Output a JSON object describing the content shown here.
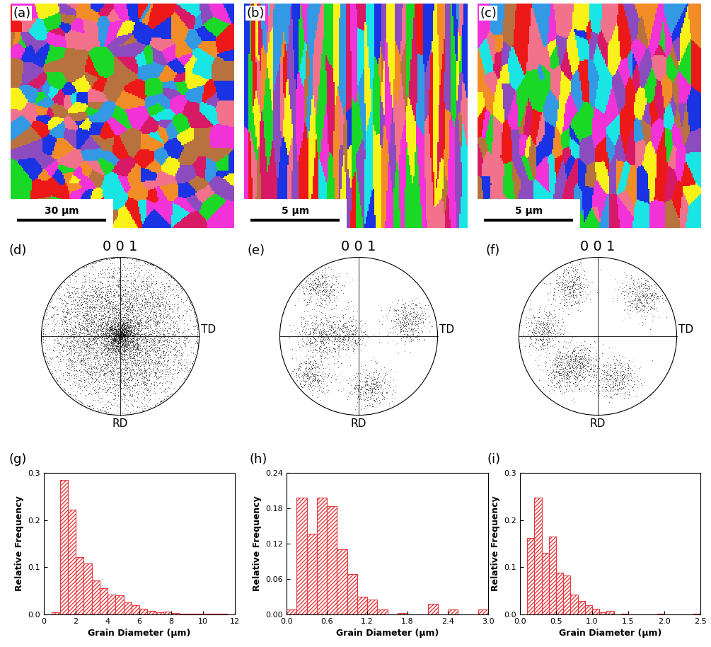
{
  "maps": [
    {
      "label": "(a)",
      "scale_bar": "30 μm"
    },
    {
      "label": "(b)",
      "scale_bar": "5 μm"
    },
    {
      "label": "(c)",
      "scale_bar": "5 μm"
    }
  ],
  "pole_figures": [
    {
      "label": "(d)",
      "pole": "0 0 1",
      "directions": [
        "TD",
        "RD"
      ]
    },
    {
      "label": "(e)",
      "pole": "0 0 1",
      "directions": [
        "TD",
        "RD"
      ]
    },
    {
      "label": "(f)",
      "pole": "0 0 1",
      "directions": [
        "TD",
        "RD"
      ]
    }
  ],
  "chart_data": [
    {
      "type": "histogram",
      "panel_label": "(g)",
      "x_label": "Grain Diameter (μm)",
      "y_label": "Relative Frequency",
      "bins": [
        0.5,
        1.0,
        1.5,
        2.0,
        2.5,
        3.0,
        3.5,
        4.0,
        4.5,
        5.0,
        5.5,
        6.0,
        6.5,
        7.0,
        7.5,
        8.0,
        8.5,
        9.0,
        9.5,
        10.0,
        10.5,
        11.0,
        11.5
      ],
      "counts": [
        0.005,
        0.285,
        0.222,
        0.122,
        0.108,
        0.072,
        0.055,
        0.042,
        0.04,
        0.025,
        0.02,
        0.012,
        0.008,
        0.005,
        0.006,
        0.003,
        0.002,
        0.001,
        0.002,
        0.001,
        0.001,
        0.002
      ],
      "color": "#e8383d",
      "xlim": [
        0,
        12
      ],
      "xticks": [
        0,
        2,
        4,
        6,
        8,
        10,
        12
      ],
      "ylim": [
        0.0,
        0.3
      ],
      "yticks": [
        0.0,
        0.1,
        0.2,
        0.3
      ]
    },
    {
      "type": "histogram",
      "panel_label": "(h)",
      "x_label": "Grain Diameter (μm)",
      "y_label": "Relative Frequency",
      "bins": [
        0.0,
        0.15,
        0.3,
        0.45,
        0.6,
        0.75,
        0.9,
        1.05,
        1.2,
        1.35,
        1.5,
        1.65,
        1.8,
        1.95,
        2.1,
        2.25,
        2.4,
        2.55,
        2.7,
        2.85,
        3.0
      ],
      "counts": [
        0.008,
        0.198,
        0.137,
        0.198,
        0.184,
        0.11,
        0.068,
        0.03,
        0.025,
        0.008,
        0.0,
        0.002,
        0.0,
        0.0,
        0.018,
        0.0,
        0.008,
        0.0,
        0.0,
        0.008
      ],
      "color": "#e8383d",
      "xlim": [
        0.0,
        3.0
      ],
      "xticks": [
        0.0,
        0.6,
        1.2,
        1.8,
        2.4,
        3.0
      ],
      "ylim": [
        0.0,
        0.24
      ],
      "yticks": [
        {
          "value": 0.0,
          "label": "0.00"
        },
        {
          "value": 0.06,
          "label": "0.06"
        },
        {
          "value": 0.12,
          "label": "0.12"
        },
        {
          "value": 0.18,
          "label": "0.18"
        },
        {
          "value": 0.24,
          "label": "0.24"
        }
      ]
    },
    {
      "type": "histogram",
      "panel_label": "(i)",
      "x_label": "Grain Diameter (μm)",
      "y_label": "Relative Frequency",
      "bins": [
        0.1,
        0.2,
        0.3,
        0.4,
        0.5,
        0.6,
        0.7,
        0.8,
        0.9,
        1.0,
        1.1,
        1.2,
        1.3,
        1.4,
        1.5,
        1.6,
        1.7,
        1.8,
        1.9,
        2.0,
        2.1,
        2.2,
        2.3,
        2.4,
        2.5
      ],
      "counts": [
        0.162,
        0.248,
        0.13,
        0.165,
        0.088,
        0.082,
        0.042,
        0.028,
        0.02,
        0.012,
        0.005,
        0.008,
        0.0,
        0.002,
        0.0,
        0.0,
        0.0,
        0.0,
        0.002,
        0.0,
        0.0,
        0.0,
        0.0,
        0.002
      ],
      "color": "#e8383d",
      "xlim": [
        0.0,
        2.5
      ],
      "xticks": [
        0.0,
        0.5,
        1.0,
        1.5,
        2.0,
        2.5
      ],
      "ylim": [
        0.0,
        0.3
      ],
      "yticks": [
        0.0,
        0.1,
        0.2,
        0.3
      ]
    }
  ]
}
